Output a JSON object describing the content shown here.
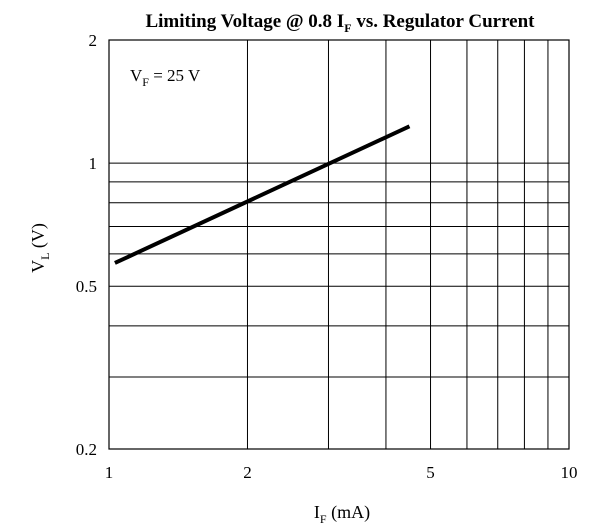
{
  "chart_data": {
    "type": "line",
    "title": {
      "main": "Limiting Voltage @ 0.8 I",
      "sub": "F",
      "tail": " vs. Regulator Current"
    },
    "xlabel": {
      "main": "I",
      "sub": "F",
      "unit": " (mA)"
    },
    "ylabel": {
      "main": "V",
      "sub": "L",
      "unit": " (V)"
    },
    "xscale": "log",
    "yscale": "log",
    "xlim": [
      1,
      10
    ],
    "ylim": [
      0.2,
      2
    ],
    "xticks": [
      {
        "value": 1,
        "label": "1"
      },
      {
        "value": 2,
        "label": "2"
      },
      {
        "value": 5,
        "label": "5"
      },
      {
        "value": 10,
        "label": "10"
      }
    ],
    "yticks": [
      {
        "value": 0.2,
        "label": "0.2"
      },
      {
        "value": 0.5,
        "label": "0.5"
      },
      {
        "value": 1,
        "label": "1"
      },
      {
        "value": 2,
        "label": "2"
      }
    ],
    "x_gridlines": [
      2,
      3,
      4,
      5,
      6,
      7,
      8,
      9
    ],
    "y_gridlines": [
      0.3,
      0.4,
      0.5,
      0.6,
      0.7,
      0.8,
      0.9,
      1
    ],
    "grid": true,
    "annotation": {
      "main": "V",
      "sub": "F",
      "tail": " = 25 V"
    },
    "series": [
      {
        "x": [
          1.03,
          4.5
        ],
        "y": [
          0.57,
          1.23
        ]
      }
    ]
  }
}
